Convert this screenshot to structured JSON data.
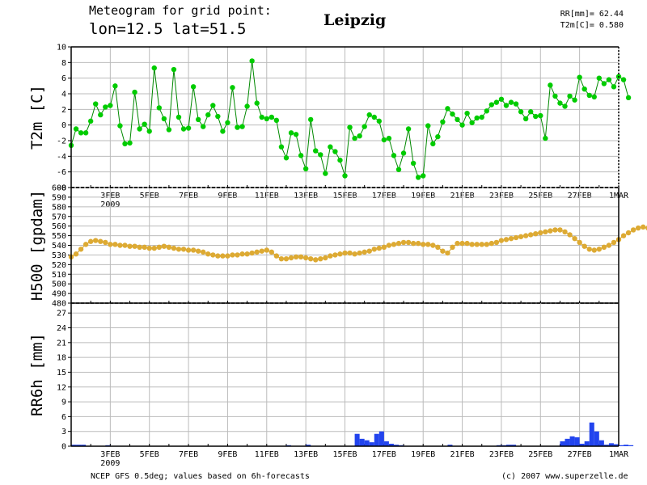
{
  "header": {
    "line1": "Meteogram for grid point:",
    "line2": "lon=12.5 lat=51.5",
    "city": "Leipzig",
    "rr_label": "RR[mm]= 62.44",
    "t2m_label": "T2m[C]= 0.580"
  },
  "footer": {
    "source": "NCEP GFS 0.5deg; values based on 6h-forecasts",
    "copyright": "(c) 2007 www.superzelle.de"
  },
  "colors": {
    "t2m": "#00cc00",
    "t2m_line": "#008800",
    "h500": "#ddaa33",
    "h500_line": "#cc9922",
    "rr": "#2244ee",
    "grid": "#bbbbbb"
  },
  "chart_data": [
    {
      "type": "line",
      "ylabel": "T2m [C]",
      "ylim": [
        -8,
        10
      ],
      "yticks": [
        -8,
        -6,
        -4,
        -2,
        0,
        2,
        4,
        6,
        8,
        10
      ],
      "ytick_labels": [
        "-8",
        "-6",
        "-4",
        "-2",
        "0",
        "2",
        "4",
        "6",
        "8",
        "10"
      ],
      "grid": true,
      "xrange_days": [
        0,
        28
      ],
      "xticks": [
        2,
        4,
        6,
        8,
        10,
        12,
        14,
        16,
        18,
        20,
        22,
        24,
        26,
        28
      ],
      "xtick_labels": [
        "3FEB",
        "5FEB",
        "7FEB",
        "9FEB",
        "11FEB",
        "13FEB",
        "15FEB",
        "17FEB",
        "19FEB",
        "21FEB",
        "23FEB",
        "25FEB",
        "27FEB",
        "1MAR"
      ],
      "year_label": "2009",
      "step_hours": 6,
      "series": [
        {
          "values": [
            -2.6,
            -0.5,
            -1.0,
            -1.0,
            0.5,
            2.7,
            1.3,
            2.3,
            2.5,
            5.0,
            -0.1,
            -2.4,
            -2.3,
            4.2,
            -0.5,
            0.1,
            -0.8,
            7.3,
            2.2,
            0.8,
            -0.6,
            7.1,
            1.0,
            -0.5,
            -0.4,
            4.9,
            0.7,
            -0.2,
            1.3,
            2.5,
            1.1,
            -0.8,
            0.3,
            4.8,
            -0.3,
            -0.2,
            2.4,
            8.2,
            2.8,
            1.0,
            0.8,
            1.0,
            0.6,
            -2.8,
            -4.2,
            -1.0,
            -1.2,
            -3.9,
            -5.6,
            0.7,
            -3.3,
            -3.8,
            -6.2,
            -2.8,
            -3.4,
            -4.5,
            -6.5,
            -0.3,
            -1.7,
            -1.4,
            -0.2,
            1.3,
            1.0,
            0.5,
            -1.9,
            -1.7,
            -3.9,
            -5.7,
            -3.6,
            -0.5,
            -4.9,
            -6.7,
            -6.5,
            -0.1,
            -2.4,
            -1.5,
            0.4,
            2.1,
            1.4,
            0.7,
            0.0,
            1.5,
            0.3,
            0.9,
            1.0,
            1.8,
            2.6,
            2.9,
            3.3,
            2.5,
            2.9,
            2.7,
            1.7,
            0.8,
            1.7,
            1.1,
            1.2,
            -1.7,
            5.1,
            3.7,
            2.8,
            2.4,
            3.7,
            3.2,
            6.1,
            4.6,
            3.8,
            3.6,
            6.0,
            5.3,
            5.8,
            4.9,
            6.2,
            5.8,
            3.5
          ]
        }
      ]
    },
    {
      "type": "line",
      "ylabel": "H500 [gpdam]",
      "ylim": [
        480,
        600
      ],
      "yticks": [
        480,
        490,
        500,
        510,
        520,
        530,
        540,
        550,
        560,
        570,
        580,
        590,
        600
      ],
      "ytick_labels": [
        "480",
        "490",
        "500",
        "510",
        "520",
        "530",
        "540",
        "550",
        "560",
        "570",
        "580",
        "590",
        "600"
      ],
      "grid": true,
      "xrange_days": [
        0,
        28
      ],
      "step_hours": 6,
      "series": [
        {
          "values": [
            528,
            531,
            536,
            541,
            544,
            545,
            544,
            543,
            541,
            541,
            540,
            540,
            539,
            539,
            538,
            538,
            537,
            537,
            538,
            539,
            538,
            537,
            536,
            536,
            535,
            535,
            534,
            533,
            531,
            530,
            529,
            529,
            529,
            530,
            530,
            531,
            531,
            532,
            533,
            534,
            535,
            533,
            529,
            526,
            526,
            527,
            528,
            528,
            527,
            526,
            525,
            526,
            527,
            529,
            530,
            531,
            532,
            532,
            531,
            532,
            533,
            534,
            536,
            537,
            538,
            540,
            541,
            542,
            543,
            543,
            542,
            542,
            541,
            541,
            540,
            538,
            534,
            532,
            538,
            542,
            542,
            542,
            541,
            541,
            541,
            541,
            542,
            543,
            545,
            546,
            547,
            548,
            549,
            550,
            551,
            552,
            553,
            554,
            555,
            556,
            556,
            554,
            551,
            547,
            543,
            539,
            536,
            535,
            536,
            538,
            540,
            543,
            546,
            550,
            553,
            556,
            558,
            559,
            558,
            556,
            553,
            549,
            545,
            542,
            540,
            539,
            541,
            546,
            549,
            551,
            552,
            553,
            554,
            555,
            555,
            554
          ]
        }
      ]
    },
    {
      "type": "bar",
      "ylabel": "RR6h [mm]",
      "ylim": [
        0,
        29
      ],
      "yticks": [
        0,
        3,
        6,
        9,
        12,
        15,
        18,
        21,
        24,
        27
      ],
      "ytick_labels": [
        "0",
        "3",
        "6",
        "9",
        "12",
        "15",
        "18",
        "21",
        "24",
        "27"
      ],
      "grid": true,
      "xrange_days": [
        0,
        28
      ],
      "xticks": [
        2,
        4,
        6,
        8,
        10,
        12,
        14,
        16,
        18,
        20,
        22,
        24,
        26,
        28
      ],
      "xtick_labels": [
        "3FEB",
        "5FEB",
        "7FEB",
        "9FEB",
        "11FEB",
        "13FEB",
        "15FEB",
        "17FEB",
        "19FEB",
        "21FEB",
        "23FEB",
        "25FEB",
        "27FEB",
        "1MAR"
      ],
      "year_label": "2009",
      "step_hours": 6,
      "series": [
        {
          "values": [
            0.3,
            0.3,
            0.3,
            0,
            0,
            0,
            0,
            0.2,
            0,
            0,
            0,
            0,
            0,
            0,
            0,
            0,
            0,
            0,
            0,
            0,
            0,
            0,
            0,
            0,
            0,
            0,
            0,
            0,
            0,
            0,
            0,
            0,
            0,
            0,
            0,
            0,
            0,
            0,
            0,
            0,
            0,
            0,
            0,
            0,
            0.2,
            0,
            0,
            0,
            0.3,
            0,
            0,
            0,
            0,
            0,
            0,
            0,
            0,
            0,
            2.5,
            1.5,
            1.2,
            0.8,
            2.5,
            3.0,
            1.0,
            0.5,
            0.3,
            0.2,
            0,
            0,
            0,
            0,
            0,
            0,
            0,
            0,
            0,
            0.3,
            0,
            0,
            0,
            0,
            0,
            0,
            0,
            0,
            0,
            0.2,
            0.2,
            0.3,
            0.3,
            0,
            0,
            0,
            0,
            0,
            0,
            0,
            0,
            0,
            1.0,
            1.5,
            2.0,
            1.8,
            0.5,
            1.0,
            4.8,
            3.0,
            1.2,
            0.3,
            0.6,
            0.4,
            0.2,
            0.3,
            0.2,
            0,
            0,
            0,
            0,
            0.2,
            0,
            0,
            0.3,
            0.2,
            1.5,
            1.8,
            1.5,
            1.8,
            0.7,
            0.8,
            0.2,
            0.3,
            2.5,
            2.5,
            1.0,
            1.2,
            1.5,
            1.8,
            2.0,
            1.5,
            0.7,
            0.5,
            0.4,
            0.3,
            0.2,
            0.3,
            0.2,
            0.2,
            0,
            0,
            0,
            0.2,
            0,
            0,
            0.3,
            1.5,
            1.2,
            1.2,
            1.8,
            5.5,
            2.0,
            0.3,
            0,
            0.2,
            0.3,
            0.2,
            1.5,
            1.5,
            1.5,
            1.5,
            0
          ]
        }
      ]
    }
  ]
}
